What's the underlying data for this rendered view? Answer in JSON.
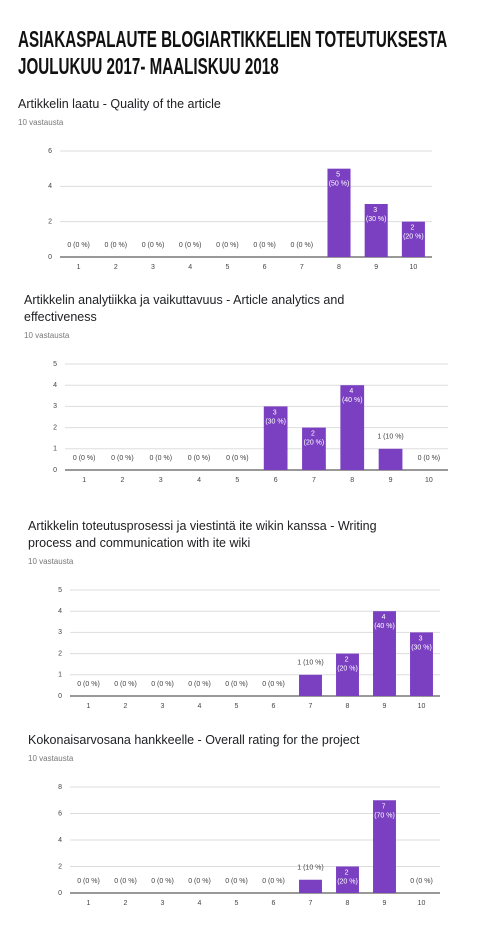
{
  "heading": {
    "lines": [
      "ASIAKASPALAUTE BLOGIARTIKKELIEN TOTEUTUKSESTA",
      "JOULUKUU 2017- MAALISKUU 2018"
    ]
  },
  "chart_data": [
    {
      "type": "bar",
      "title": "Artikkelin laatu - Quality of the article",
      "subtitle": "10 vastausta",
      "categories": [
        "1",
        "2",
        "3",
        "4",
        "5",
        "6",
        "7",
        "8",
        "9",
        "10"
      ],
      "values": [
        0,
        0,
        0,
        0,
        0,
        0,
        0,
        5,
        3,
        2
      ],
      "value_labels": [
        "0 (0 %)",
        "0 (0 %)",
        "0 (0 %)",
        "0 (0 %)",
        "0 (0 %)",
        "0 (0 %)",
        "0 (0 %)",
        "5 (50 %)",
        "3 (30 %)",
        "2 (20 %)"
      ],
      "color": "#7b40c2",
      "ylim": [
        0,
        6
      ],
      "yticks": [
        0,
        2,
        4,
        6
      ],
      "grid": true
    },
    {
      "type": "bar",
      "title": "Artikkelin analytiikka ja vaikuttavuus - Article analytics and effectiveness",
      "subtitle": "10 vastausta",
      "categories": [
        "1",
        "2",
        "3",
        "4",
        "5",
        "6",
        "7",
        "8",
        "9",
        "10"
      ],
      "values": [
        0,
        0,
        0,
        0,
        0,
        3,
        2,
        4,
        1,
        0
      ],
      "value_labels": [
        "0 (0 %)",
        "0 (0 %)",
        "0 (0 %)",
        "0 (0 %)",
        "0 (0 %)",
        "3 (30 %)",
        "2 (20 %)",
        "4 (40 %)",
        "1 (10 %)",
        "0 (0 %)"
      ],
      "color": "#7b40c2",
      "ylim": [
        0,
        5
      ],
      "yticks": [
        0,
        1,
        2,
        3,
        4,
        5
      ],
      "grid": true
    },
    {
      "type": "bar",
      "title": "Artikkelin toteutusprosessi ja viestintä ite wikin kanssa - Writing process and communication with ite wiki",
      "subtitle": "10 vastausta",
      "categories": [
        "1",
        "2",
        "3",
        "4",
        "5",
        "6",
        "7",
        "8",
        "9",
        "10"
      ],
      "values": [
        0,
        0,
        0,
        0,
        0,
        0,
        1,
        2,
        4,
        3
      ],
      "value_labels": [
        "0 (0 %)",
        "0 (0 %)",
        "0 (0 %)",
        "0 (0 %)",
        "0 (0 %)",
        "0 (0 %)",
        "1 (10 %)",
        "2 (20 %)",
        "4 (40 %)",
        "3 (30 %)"
      ],
      "color": "#7b40c2",
      "ylim": [
        0,
        5
      ],
      "yticks": [
        0,
        1,
        2,
        3,
        4,
        5
      ],
      "grid": true
    },
    {
      "type": "bar",
      "title": "Kokonaisarvosana hankkeelle - Overall rating for the project",
      "subtitle": "10 vastausta",
      "categories": [
        "1",
        "2",
        "3",
        "4",
        "5",
        "6",
        "7",
        "8",
        "9",
        "10"
      ],
      "values": [
        0,
        0,
        0,
        0,
        0,
        0,
        1,
        2,
        7,
        0
      ],
      "value_labels": [
        "0 (0 %)",
        "0 (0 %)",
        "0 (0 %)",
        "0 (0 %)",
        "0 (0 %)",
        "0 (0 %)",
        "1 (10 %)",
        "2 (20 %)",
        "7 (70 %)",
        "0 (0 %)"
      ],
      "color": "#7b40c2",
      "ylim": [
        0,
        8
      ],
      "yticks": [
        0,
        2,
        4,
        6,
        8
      ],
      "grid": true
    }
  ]
}
